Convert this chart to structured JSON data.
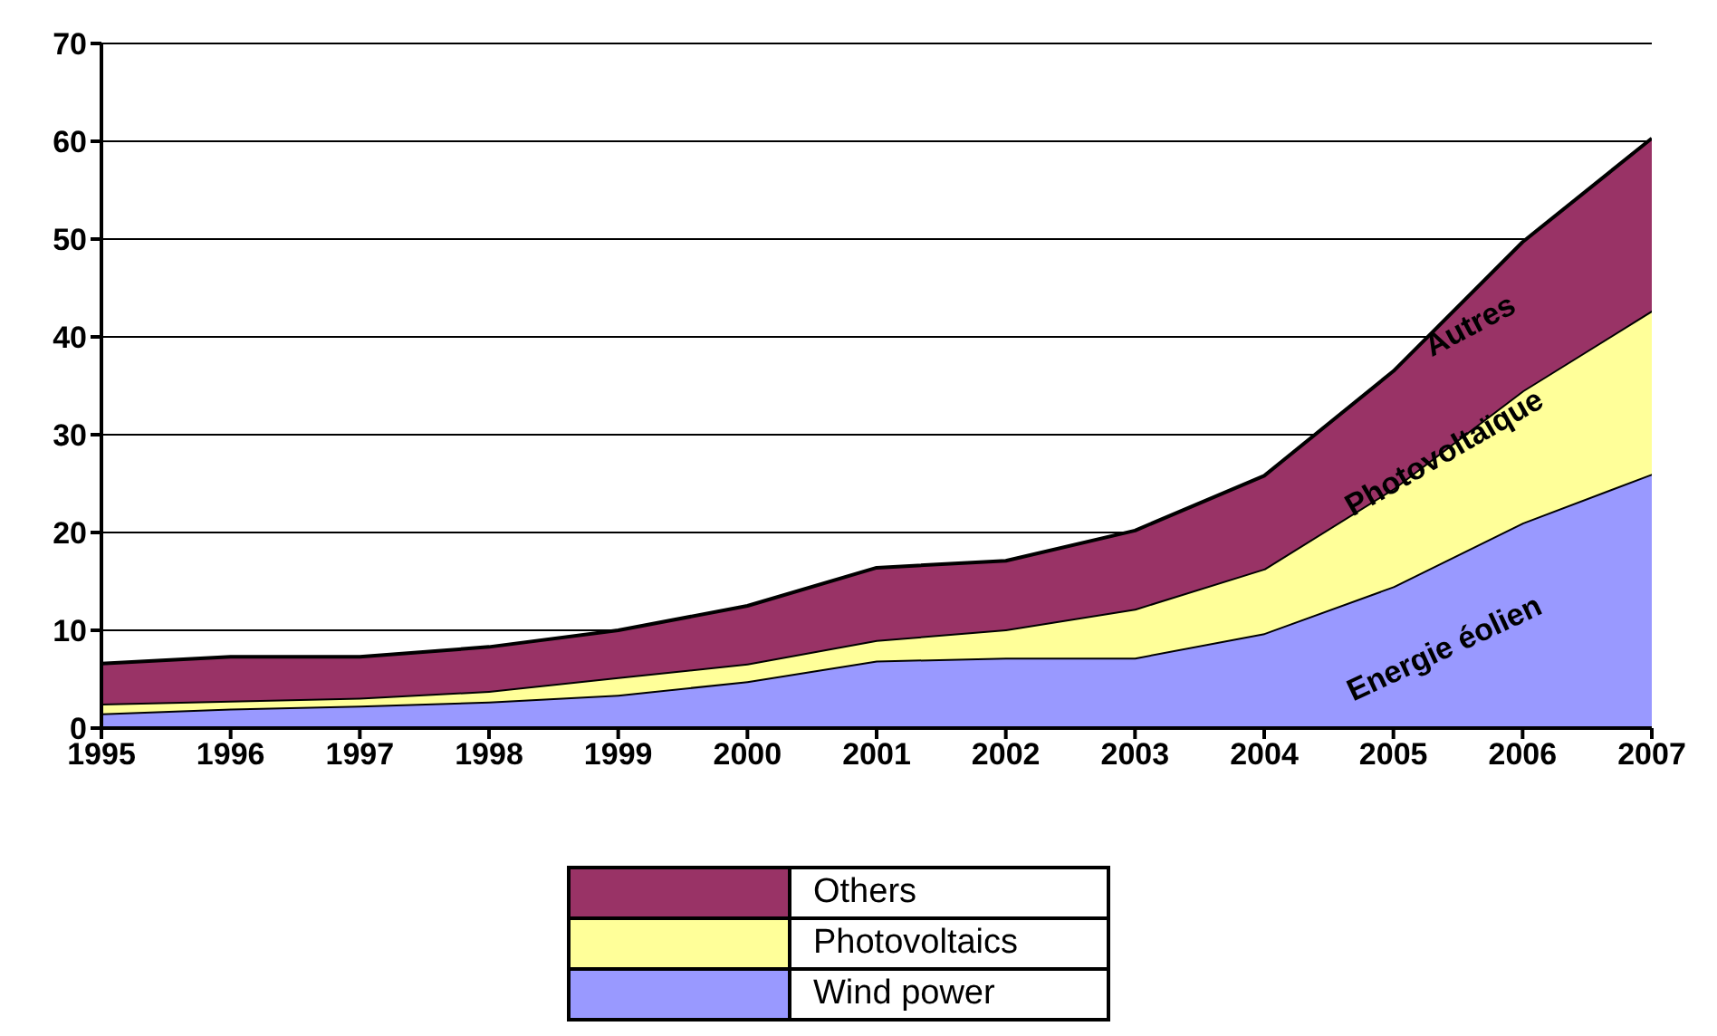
{
  "chart_data": {
    "type": "area",
    "stacked": true,
    "categories": [
      "1995",
      "1996",
      "1997",
      "1998",
      "1999",
      "2000",
      "2001",
      "2002",
      "2003",
      "2004",
      "2005",
      "2006",
      "2007"
    ],
    "series": [
      {
        "name": "Wind power",
        "color": "#9999ff",
        "values": [
          1.5,
          2,
          2.3,
          2.7,
          3.4,
          4.8,
          6.9,
          7.2,
          7.2,
          9.7,
          14.5,
          21,
          26
        ]
      },
      {
        "name": "Photovoltaics",
        "color": "#ffff99",
        "values": [
          1,
          0.8,
          0.8,
          1.1,
          1.8,
          1.8,
          2.1,
          2.9,
          5,
          6.6,
          10,
          13.5,
          16.7
        ]
      },
      {
        "name": "Others",
        "color": "#993366",
        "values": [
          4.1,
          4.5,
          4.2,
          4.5,
          4.8,
          5.9,
          7.4,
          7,
          8,
          9.5,
          12,
          15.2,
          17.6
        ]
      }
    ],
    "ylim": [
      0,
      70
    ],
    "yticks": [
      0,
      10,
      20,
      30,
      40,
      50,
      60,
      70
    ],
    "grid": "y",
    "legend": "bottom",
    "annotations": [
      "Autres",
      "Photovoltaïque",
      "Energie éolien"
    ]
  }
}
